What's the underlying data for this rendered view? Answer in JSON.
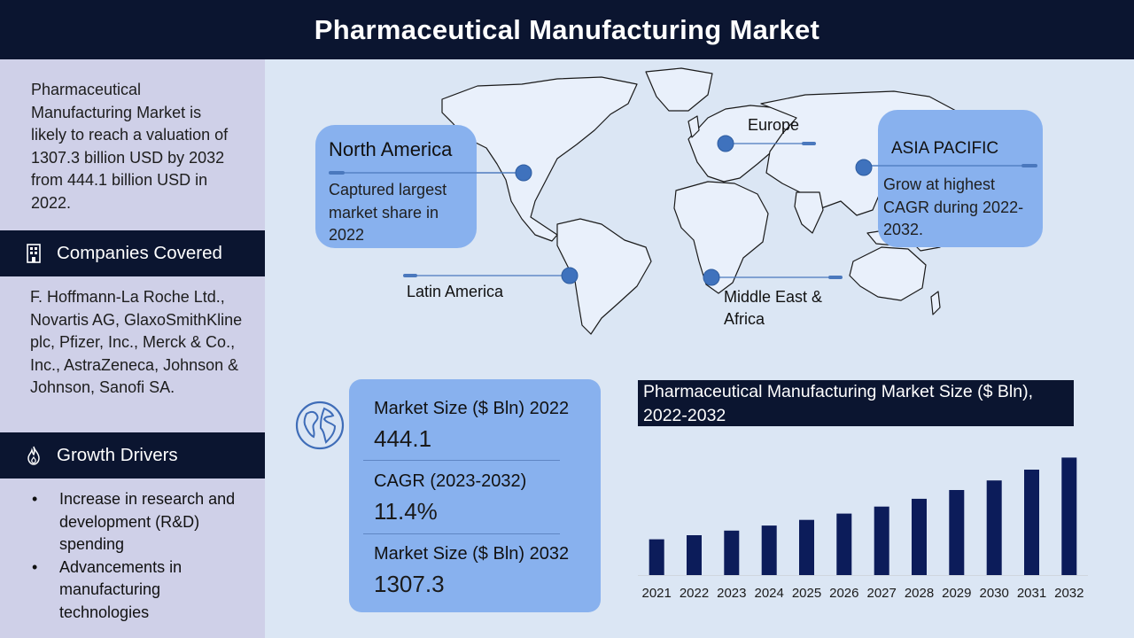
{
  "header": {
    "title": "Pharmaceutical Manufacturing Market"
  },
  "sidebar": {
    "intro": "Pharmaceutical Manufacturing Market is likely to reach a valuation of 1307.3 billion USD by 2032 from 444.1 billion USD in 2022.",
    "companies_heading": "Companies Covered",
    "companies_text": "F. Hoffmann-La Roche Ltd., Novartis AG, GlaxoSmithKline plc, Pfizer, Inc., Merck & Co., Inc., AstraZeneca, Johnson & Johnson, Sanofi SA.",
    "drivers_heading": "Growth Drivers",
    "drivers": [
      "Increase in research and development (R&D) spending",
      "Advancements in manufacturing technologies"
    ],
    "companies_icon": "building-icon",
    "drivers_icon": "flame-icon"
  },
  "map": {
    "north_america": {
      "title": "North America",
      "text": "Captured largest market share in 2022"
    },
    "europe": {
      "title": "Europe"
    },
    "asia_pacific": {
      "title": "ASIA PACIFIC",
      "text": "Grow at highest CAGR during 2022-2032."
    },
    "latin_america": {
      "title": "Latin America"
    },
    "mea": {
      "title": "Middle East & Africa"
    }
  },
  "stats": {
    "icon": "globe-icon",
    "items": [
      {
        "label": "Market Size ($ Bln) 2022",
        "value": "444.1"
      },
      {
        "label": "CAGR (2023-2032)",
        "value": "11.4%"
      },
      {
        "label": "Market Size ($ Bln) 2032",
        "value": "1307.3"
      }
    ]
  },
  "chart_data": {
    "type": "bar",
    "title": "Pharmaceutical Manufacturing Market Size ($ Bln), 2022-2032",
    "categories": [
      "2021",
      "2022",
      "2023",
      "2024",
      "2025",
      "2026",
      "2027",
      "2028",
      "2029",
      "2030",
      "2031",
      "2032"
    ],
    "values": [
      398,
      444.1,
      495,
      551,
      614,
      684,
      762,
      849,
      946,
      1053,
      1173,
      1307.3
    ],
    "xlabel": "",
    "ylabel": "",
    "ylim": [
      0,
      1400
    ],
    "grid": false,
    "bar_color": "#0c1c5a"
  },
  "colors": {
    "header_bg": "#0b1530",
    "sidebar_bg": "#cfd0e8",
    "main_bg": "#dbe6f4",
    "card_bg": "#88b1ee",
    "marker": "#3d6fb6"
  }
}
